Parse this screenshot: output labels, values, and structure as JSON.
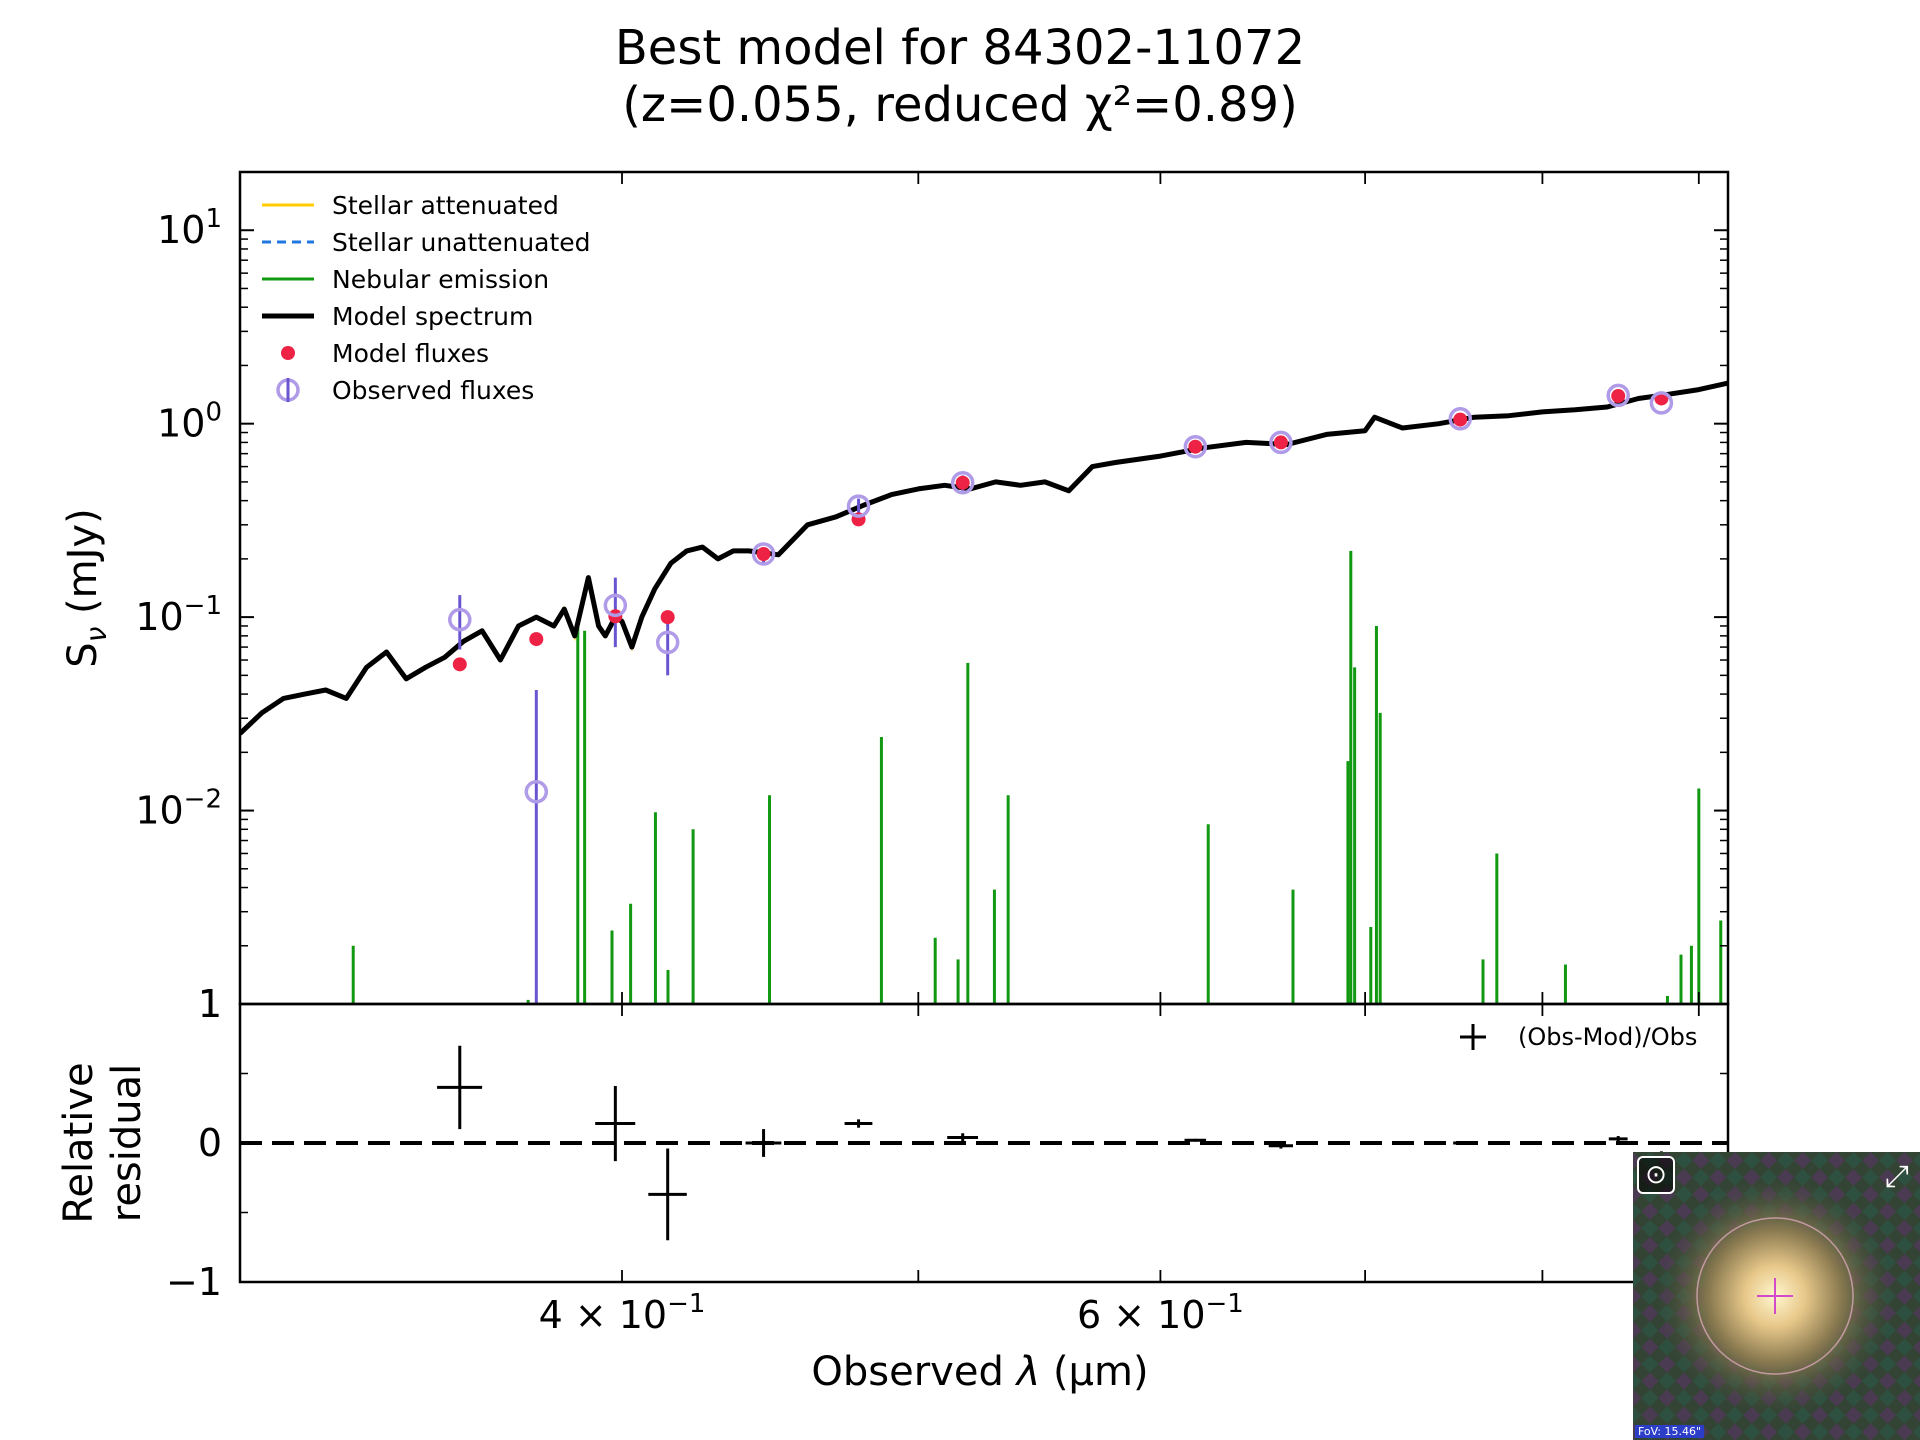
{
  "title": {
    "line1": "Best model for 84302-11072",
    "line2": "(z=0.055, reduced χ²=0.89)"
  },
  "colors": {
    "stellar_attenuated": "#ffcc00",
    "stellar_unattenuated": "#1f77e0",
    "nebular": "#119911",
    "model": "#000000",
    "model_flux": "#ee2244",
    "obs_flux": "#b09be8",
    "obs_err": "#6a55d0"
  },
  "chart_data": [
    {
      "type": "line",
      "panel": "main",
      "xlabel_prefix": "Observed ",
      "xlabel_var": "λ",
      "xlabel_unit": " (μm)",
      "ylabel_main": "S",
      "ylabel_sub": "ν",
      "ylabel_unit": " (mJy)",
      "xscale": "log",
      "yscale": "log",
      "xlim": [
        0.3,
        0.92
      ],
      "ylim": [
        0.001,
        20
      ],
      "grid": false,
      "legend_placement": "top-left",
      "xticks": [
        {
          "value": 0.4,
          "label": "4 × 10",
          "exp": "−1"
        },
        {
          "value": 0.6,
          "label": "6 × 10",
          "exp": "−1"
        }
      ],
      "yticks": [
        {
          "value": 10,
          "base": "10",
          "exp": "1"
        },
        {
          "value": 1,
          "base": "10",
          "exp": "0"
        },
        {
          "value": 0.1,
          "base": "10",
          "exp": "−1"
        },
        {
          "value": 0.01,
          "base": "10",
          "exp": "−2"
        },
        {
          "value": 0.001,
          "base": "1",
          "exp": ""
        }
      ],
      "legend": [
        {
          "label": "Stellar attenuated",
          "kind": "line",
          "color_key": "stellar_attenuated"
        },
        {
          "label": "Stellar unattenuated",
          "kind": "dash",
          "color_key": "stellar_unattenuated"
        },
        {
          "label": "Nebular emission",
          "kind": "line",
          "color_key": "nebular"
        },
        {
          "label": "Model spectrum",
          "kind": "thick",
          "color_key": "model"
        },
        {
          "label": "Model fluxes",
          "kind": "dot",
          "color_key": "model_flux"
        },
        {
          "label": "Observed fluxes",
          "kind": "circle",
          "color_key": "obs_flux"
        }
      ],
      "model_spectrum": {
        "x": [
          0.3,
          0.305,
          0.31,
          0.315,
          0.32,
          0.325,
          0.33,
          0.335,
          0.34,
          0.345,
          0.35,
          0.355,
          0.36,
          0.365,
          0.37,
          0.375,
          0.38,
          0.383,
          0.386,
          0.39,
          0.393,
          0.395,
          0.398,
          0.4,
          0.403,
          0.406,
          0.41,
          0.415,
          0.42,
          0.425,
          0.43,
          0.435,
          0.44,
          0.45,
          0.46,
          0.47,
          0.48,
          0.49,
          0.5,
          0.51,
          0.52,
          0.53,
          0.54,
          0.55,
          0.56,
          0.57,
          0.58,
          0.6,
          0.62,
          0.64,
          0.66,
          0.68,
          0.7,
          0.705,
          0.72,
          0.74,
          0.76,
          0.78,
          0.8,
          0.82,
          0.84,
          0.86,
          0.88,
          0.9,
          0.92
        ],
        "y": [
          0.025,
          0.032,
          0.038,
          0.04,
          0.042,
          0.038,
          0.055,
          0.066,
          0.048,
          0.055,
          0.062,
          0.075,
          0.085,
          0.06,
          0.09,
          0.1,
          0.09,
          0.11,
          0.08,
          0.16,
          0.09,
          0.08,
          0.1,
          0.095,
          0.07,
          0.1,
          0.14,
          0.19,
          0.22,
          0.23,
          0.2,
          0.22,
          0.22,
          0.21,
          0.3,
          0.33,
          0.38,
          0.43,
          0.46,
          0.48,
          0.46,
          0.5,
          0.48,
          0.5,
          0.45,
          0.6,
          0.63,
          0.68,
          0.75,
          0.8,
          0.78,
          0.88,
          0.92,
          1.08,
          0.95,
          1.0,
          1.08,
          1.1,
          1.15,
          1.18,
          1.22,
          1.35,
          1.42,
          1.5,
          1.62
        ]
      },
      "nebular_lines": [
        {
          "x": 0.3267,
          "y": 0.002
        },
        {
          "x": 0.3727,
          "y": 0.00105
        },
        {
          "x": 0.3869,
          "y": 0.09
        },
        {
          "x": 0.3889,
          "y": 0.085
        },
        {
          "x": 0.397,
          "y": 0.0024
        },
        {
          "x": 0.4026,
          "y": 0.0033
        },
        {
          "x": 0.4102,
          "y": 0.0098
        },
        {
          "x": 0.4141,
          "y": 0.0015
        },
        {
          "x": 0.422,
          "y": 0.008
        },
        {
          "x": 0.447,
          "y": 0.012
        },
        {
          "x": 0.4863,
          "y": 0.024
        },
        {
          "x": 0.5064,
          "y": 0.0022
        },
        {
          "x": 0.5152,
          "y": 0.0017
        },
        {
          "x": 0.519,
          "y": 0.058
        },
        {
          "x": 0.5295,
          "y": 0.0039
        },
        {
          "x": 0.535,
          "y": 0.012
        },
        {
          "x": 0.622,
          "y": 0.0085
        },
        {
          "x": 0.663,
          "y": 0.0039
        },
        {
          "x": 0.691,
          "y": 0.018
        },
        {
          "x": 0.6925,
          "y": 0.22
        },
        {
          "x": 0.6945,
          "y": 0.055
        },
        {
          "x": 0.703,
          "y": 0.0025
        },
        {
          "x": 0.706,
          "y": 0.09
        },
        {
          "x": 0.708,
          "y": 0.032
        },
        {
          "x": 0.765,
          "y": 0.0017
        },
        {
          "x": 0.773,
          "y": 0.006
        },
        {
          "x": 0.814,
          "y": 0.0016
        },
        {
          "x": 0.879,
          "y": 0.0011
        },
        {
          "x": 0.888,
          "y": 0.0018
        },
        {
          "x": 0.895,
          "y": 0.002
        },
        {
          "x": 0.9,
          "y": 0.013
        },
        {
          "x": 0.915,
          "y": 0.0027
        }
      ],
      "model_fluxes": {
        "x": [
          0.354,
          0.375,
          0.398,
          0.414,
          0.445,
          0.478,
          0.517,
          0.616,
          0.657,
          0.752,
          0.847,
          0.875
        ],
        "y": [
          0.057,
          0.077,
          0.101,
          0.1,
          0.212,
          0.32,
          0.495,
          0.76,
          0.8,
          1.05,
          1.39,
          1.35
        ]
      },
      "observed_fluxes": {
        "x": [
          0.354,
          0.375,
          0.398,
          0.414,
          0.445,
          0.478,
          0.517,
          0.616,
          0.657,
          0.752,
          0.847,
          0.875
        ],
        "y": [
          0.097,
          0.0125,
          0.115,
          0.074,
          0.212,
          0.375,
          0.495,
          0.76,
          0.8,
          1.06,
          1.4,
          1.28
        ],
        "err_low": [
          0.068,
          0.001,
          0.07,
          0.05,
          0.19,
          0.34,
          0.45,
          0.74,
          0.78,
          1.04,
          1.37,
          1.25
        ],
        "err_high": [
          0.13,
          0.042,
          0.16,
          0.1,
          0.23,
          0.41,
          0.54,
          0.78,
          0.82,
          1.08,
          1.43,
          1.31
        ]
      }
    },
    {
      "type": "scatter",
      "panel": "residual",
      "ylabel_line1": "Relative",
      "ylabel_line2": "residual",
      "ylim": [
        -1,
        1
      ],
      "yticks": [
        {
          "value": 1,
          "label": "1"
        },
        {
          "value": 0,
          "label": "0"
        },
        {
          "value": -1,
          "label": "−1"
        }
      ],
      "legend": [
        {
          "label": "(Obs-Mod)/Obs",
          "kind": "cross",
          "color_key": "model"
        }
      ],
      "legend_placement": "top-right",
      "points": {
        "x": [
          0.354,
          0.398,
          0.414,
          0.445,
          0.478,
          0.517,
          0.616,
          0.657,
          0.752,
          0.847,
          0.875
        ],
        "y": [
          0.4,
          0.14,
          -0.37,
          0.0,
          0.14,
          0.04,
          0.02,
          -0.02,
          0.0,
          0.03,
          -0.08
        ],
        "err": [
          0.3,
          0.27,
          0.33,
          0.1,
          0.03,
          0.03,
          0.01,
          0.02,
          0.01,
          0.02,
          0.02
        ],
        "xerr": [
          0.006,
          0.006,
          0.006,
          0.006,
          0.005,
          0.006,
          0.005,
          0.006,
          0.004,
          0.006,
          0.006
        ]
      }
    }
  ],
  "cutout": {
    "fov_label": "FoV: 15.46\"",
    "target_icon": "target-icon",
    "expand_icon": "expand-icon"
  }
}
